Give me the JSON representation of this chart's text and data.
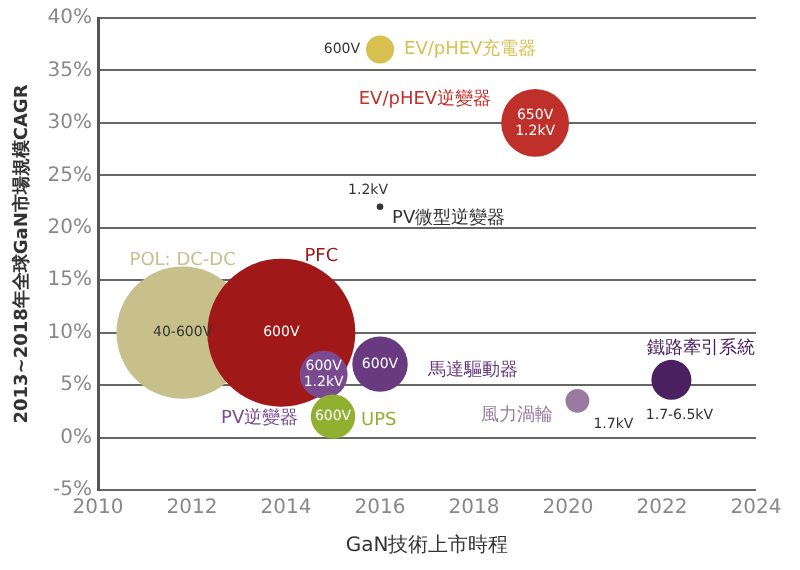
{
  "chart_data": {
    "type": "bubble",
    "xlabel": "GaN技術上市時程",
    "ylabel": "2013~2018年全球GaN市場規模CAGR",
    "xlim": [
      2010,
      2024
    ],
    "xticks": [
      2010,
      2012,
      2014,
      2016,
      2018,
      2020,
      2022,
      2024
    ],
    "ylim": [
      -5,
      40
    ],
    "yticks": [
      {
        "value": -5,
        "label": "-5%"
      },
      {
        "value": 0,
        "label": "0%"
      },
      {
        "value": 5,
        "label": "5%"
      },
      {
        "value": 10,
        "label": "10%"
      },
      {
        "value": 15,
        "label": "15%"
      },
      {
        "value": 20,
        "label": "20%"
      },
      {
        "value": 25,
        "label": "25%"
      },
      {
        "value": 30,
        "label": "30%"
      },
      {
        "value": 35,
        "label": "35%"
      },
      {
        "value": 40,
        "label": "40%"
      }
    ],
    "grid": "y",
    "legend": false,
    "series": [
      {
        "name": "EV/pHEV充電器",
        "color": "#d8c050",
        "x": [
          2016
        ],
        "values": [
          37
        ],
        "sizes": [
          0.036
        ]
      },
      {
        "name": "EV/pHEV逆變器",
        "color": "#c0302a",
        "x": [
          2019.3
        ],
        "values": [
          30
        ],
        "sizes": [
          0.21
        ]
      },
      {
        "name": "PV微型逆變器",
        "color": "#333333",
        "x": [
          2016
        ],
        "values": [
          22
        ],
        "sizes": [
          0.002
        ]
      },
      {
        "name": "POL: DC-DC",
        "color": "#c8c08a",
        "x": [
          2011.8
        ],
        "values": [
          10
        ],
        "sizes": [
          0.8
        ]
      },
      {
        "name": "PFC",
        "color": "#a01818",
        "x": [
          2013.9
        ],
        "values": [
          10
        ],
        "sizes": [
          1
        ]
      },
      {
        "name": "PV逆變器",
        "color": "#7a4a90",
        "x": [
          2014.8
        ],
        "values": [
          6
        ],
        "sizes": [
          0.105
        ]
      },
      {
        "name": "馬達驅動器",
        "color": "#6a3a80",
        "x": [
          2016
        ],
        "values": [
          7
        ],
        "sizes": [
          0.14
        ]
      },
      {
        "name": "UPS",
        "color": "#90b030",
        "x": [
          2015
        ],
        "values": [
          2
        ],
        "sizes": [
          0.09
        ]
      },
      {
        "name": "風力渦輪",
        "color": "#9a7aa0",
        "x": [
          2020.2
        ],
        "values": [
          3.5
        ],
        "sizes": [
          0.026
        ]
      },
      {
        "name": "鐵路牽引系統",
        "color": "#4a2060",
        "x": [
          2022.2
        ],
        "values": [
          5.5
        ],
        "sizes": [
          0.073
        ]
      }
    ],
    "annotations": [
      {
        "text": "600V",
        "x": 2016,
        "y": 37
      },
      {
        "text": "650V\n1.2kV",
        "x": 2019.3,
        "y": 30
      },
      {
        "text": "1.2kV",
        "x": 2016,
        "y": 22
      },
      {
        "text": "40-600V",
        "x": 2011.8,
        "y": 10
      },
      {
        "text": "600V",
        "x": 2013.9,
        "y": 10
      },
      {
        "text": "600V\n1.2kV",
        "x": 2014.8,
        "y": 6
      },
      {
        "text": "600V",
        "x": 2016,
        "y": 7
      },
      {
        "text": "600V",
        "x": 2015,
        "y": 2
      },
      {
        "text": "1.7kV",
        "x": 2020.2,
        "y": 3.5
      },
      {
        "text": "1.7-6.5kV",
        "x": 2022.2,
        "y": 5.5
      }
    ]
  }
}
